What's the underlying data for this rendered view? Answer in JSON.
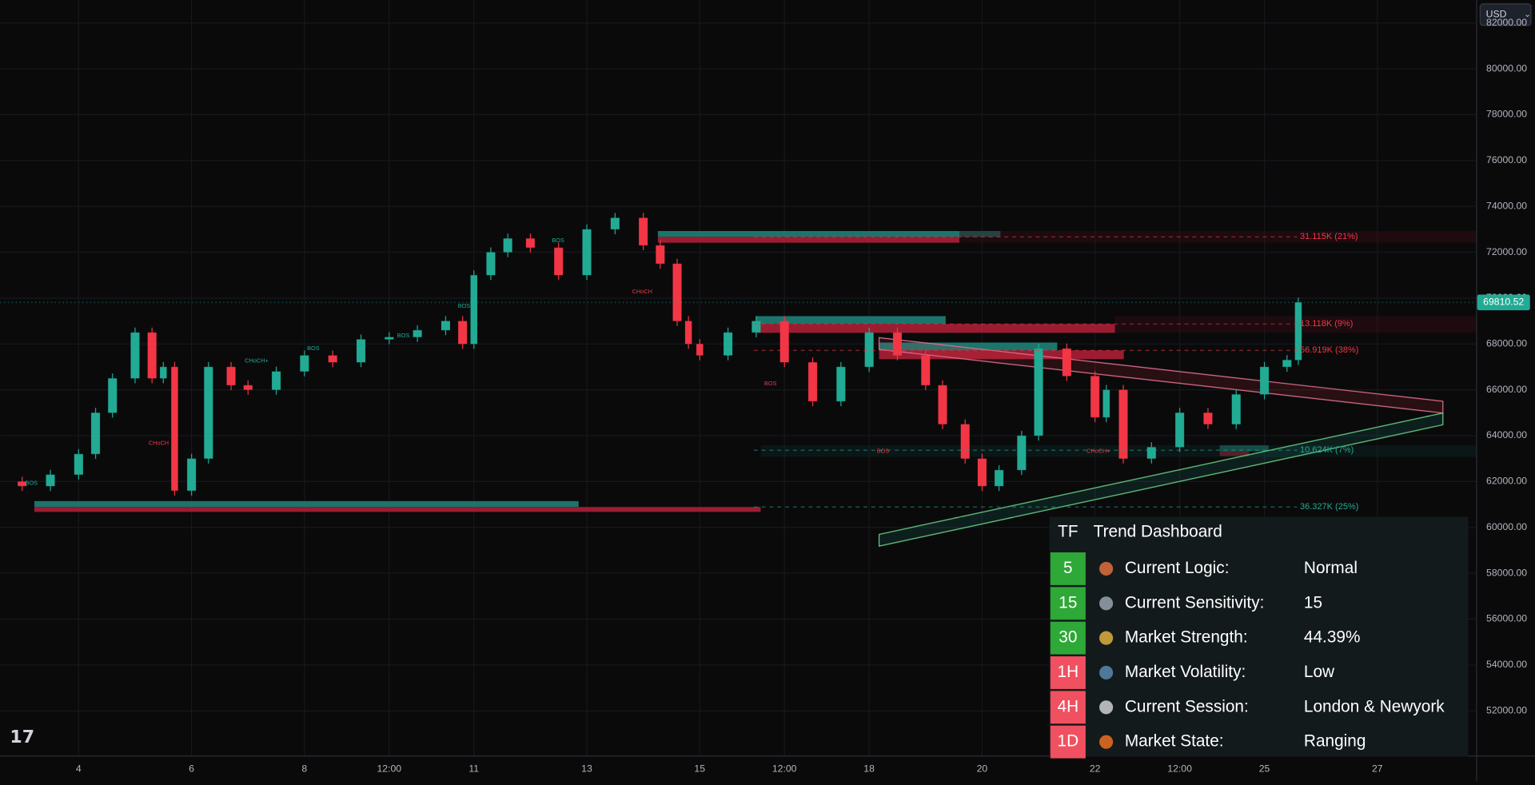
{
  "currency": "USD",
  "chart_data": {
    "type": "candlestick",
    "x": [
      2.6,
      3,
      3.5,
      4,
      4.3,
      4.6,
      5,
      5.3,
      5.5,
      5.7,
      6,
      6.3,
      6.7,
      7,
      7.5,
      8,
      8.5,
      9,
      9.5,
      10,
      10.5,
      10.8,
      11,
      11.3,
      11.6,
      12,
      12.5,
      13,
      13.5,
      14,
      14.3,
      14.6,
      14.8,
      15,
      15.5,
      16,
      16.5,
      17,
      17.5,
      18,
      18.5,
      19,
      19.3,
      19.7,
      20,
      20.3,
      20.7,
      21,
      21.5,
      22,
      22.2,
      22.5,
      23,
      23.5,
      24,
      24.5,
      25,
      25.4,
      25.6
    ],
    "values": [
      62000,
      61800,
      62300,
      63200,
      65000,
      66500,
      68500,
      66500,
      67000,
      61600,
      63000,
      67000,
      66200,
      66000,
      66800,
      67500,
      67200,
      68200,
      68300,
      68600,
      69000,
      68000,
      71000,
      72000,
      72600,
      72200,
      71000,
      73000,
      73500,
      72300,
      71500,
      69000,
      68000,
      67500,
      68500,
      69000,
      67200,
      65500,
      67000,
      68500,
      67500,
      66200,
      64500,
      63000,
      61800,
      62500,
      64000,
      67800,
      66600,
      64800,
      66000,
      63000,
      63500,
      65000,
      64500,
      65800,
      67000,
      67300,
      69810.52
    ],
    "xlim": [
      2.61,
      28.75
    ],
    "ylim": [
      50050,
      83000
    ],
    "xticks": [
      4,
      6,
      8,
      {
        "value": 9.5,
        "label": "12:00"
      },
      11,
      13,
      15,
      {
        "value": 16.5,
        "label": "12:00"
      },
      18,
      20,
      22,
      {
        "value": 23.5,
        "label": "12:00"
      },
      25,
      27
    ],
    "yticks": [
      {
        "value": 52000,
        "label": "52000.00"
      },
      {
        "value": 54000,
        "label": "54000.00"
      },
      {
        "value": 56000,
        "label": "56000.00"
      },
      {
        "value": 58000,
        "label": "58000.00"
      },
      {
        "value": 60000,
        "label": "60000.00"
      },
      {
        "value": 62000,
        "label": "62000.00"
      },
      {
        "value": 64000,
        "label": "64000.00"
      },
      {
        "value": 66000,
        "label": "66000.00"
      },
      {
        "value": 68000,
        "label": "68000.00"
      },
      {
        "value": 70000,
        "label": "70000.00"
      },
      {
        "value": 72000,
        "label": "72000.00"
      },
      {
        "value": 74000,
        "label": "74000.00"
      },
      {
        "value": 76000,
        "label": "76000.00"
      },
      {
        "value": 78000,
        "label": "78000.00"
      },
      {
        "value": 80000,
        "label": "80000.00"
      },
      {
        "value": 82000,
        "label": "82000.00"
      }
    ],
    "last_price": 69810.52,
    "up_color": "#22ab94",
    "down_color": "#f23645",
    "grid": true,
    "annotations": [
      "31.115K (21%)",
      "13.118K (9%)",
      "56.919K (38%)",
      "10.624K (7%)",
      "36.327K (25%)",
      "BOS",
      "CHoCH",
      "CHoCH+",
      "BOS",
      "BOS",
      "BOS",
      "CHoCH",
      "BOS",
      "BOS",
      "BOS",
      "CHoCH+"
    ]
  },
  "dashboard": {
    "header": [
      "TF",
      "Trend Dashboard"
    ],
    "rows": [
      [
        "5",
        "Current Logic:",
        "Normal"
      ],
      [
        "15",
        "Current Sensitivity:",
        "15"
      ],
      [
        "30",
        "Market Strength:",
        "44.39%"
      ],
      [
        "1H",
        "Market Volatility:",
        "Low"
      ],
      [
        "4H",
        "Current Session:",
        "London & Newyork"
      ],
      [
        "1D",
        "Market State:",
        "Ranging"
      ]
    ],
    "tf_colors": [
      "#2ea836",
      "#2ea836",
      "#2ea836",
      "#f05060",
      "#f05060",
      "#f05060"
    ]
  }
}
